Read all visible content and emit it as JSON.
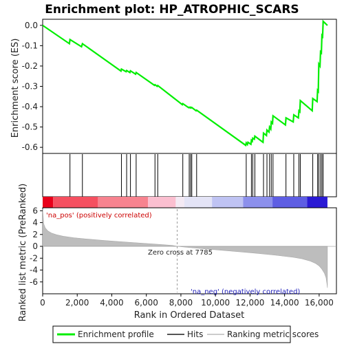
{
  "chart_data": {
    "type": "line",
    "title": "Enrichment plot: HP_ATROPHIC_SCARS",
    "xlabel": "Rank in Ordered Dataset",
    "es_ylabel": "Enrichment score (ES)",
    "metric_ylabel": "Ranked list metric (PreRanked)",
    "xlim": [
      0,
      17000
    ],
    "es_ylim": [
      -0.63,
      0.03
    ],
    "metric_ylim": [
      -8,
      6.5
    ],
    "x_ticks": [
      "0",
      "2,000",
      "4,000",
      "6,000",
      "8,000",
      "10,000",
      "12,000",
      "14,000",
      "16,000"
    ],
    "x_tick_values": [
      0,
      2000,
      4000,
      6000,
      8000,
      10000,
      12000,
      14000,
      16000
    ],
    "es_ticks": [
      "0.0",
      "-0.1",
      "-0.2",
      "-0.3",
      "-0.4",
      "-0.5",
      "-0.6"
    ],
    "es_tick_values": [
      0.0,
      -0.1,
      -0.2,
      -0.3,
      -0.4,
      -0.5,
      -0.6
    ],
    "metric_ticks": [
      "6",
      "4",
      "2",
      "0",
      "-2",
      "-4",
      "-6"
    ],
    "metric_tick_values": [
      6,
      4,
      2,
      0,
      -2,
      -4,
      -6
    ],
    "grid": false,
    "series": [
      {
        "name": "Enrichment profile",
        "color": "#00ee00",
        "x": [
          0,
          1550,
          1580,
          2250,
          2300,
          4530,
          4560,
          4830,
          4860,
          5050,
          5080,
          5380,
          5410,
          6470,
          6500,
          6630,
          6660,
          8080,
          8110,
          8450,
          8480,
          8530,
          8560,
          8600,
          8630,
          8880,
          8910,
          11750,
          11780,
          11850,
          11880,
          12050,
          12080,
          12130,
          12160,
          12250,
          12280,
          12750,
          12780,
          12950,
          12980,
          13100,
          13130,
          13200,
          13230,
          13300,
          13330,
          14050,
          14080,
          14500,
          14530,
          14800,
          14830,
          14880,
          14910,
          15600,
          15630,
          15880,
          15910,
          15950,
          15980,
          16050,
          16080,
          16130,
          16160,
          16200,
          16230,
          16480
        ],
        "y": [
          0.0,
          -0.09,
          -0.07,
          -0.105,
          -0.09,
          -0.225,
          -0.215,
          -0.228,
          -0.222,
          -0.232,
          -0.224,
          -0.24,
          -0.232,
          -0.295,
          -0.292,
          -0.3,
          -0.296,
          -0.39,
          -0.385,
          -0.405,
          -0.403,
          -0.406,
          -0.403,
          -0.406,
          -0.404,
          -0.42,
          -0.417,
          -0.59,
          -0.578,
          -0.586,
          -0.575,
          -0.585,
          -0.565,
          -0.57,
          -0.555,
          -0.56,
          -0.545,
          -0.575,
          -0.53,
          -0.542,
          -0.515,
          -0.525,
          -0.5,
          -0.51,
          -0.475,
          -0.482,
          -0.445,
          -0.49,
          -0.455,
          -0.475,
          -0.44,
          -0.455,
          -0.42,
          -0.425,
          -0.37,
          -0.42,
          -0.36,
          -0.375,
          -0.32,
          -0.325,
          -0.19,
          -0.2,
          -0.13,
          -0.135,
          -0.05,
          -0.055,
          0.02,
          0.0
        ]
      }
    ],
    "hits": [
      1580,
      2300,
      4560,
      4860,
      5080,
      5410,
      6500,
      6660,
      8110,
      8480,
      8560,
      8630,
      8910,
      11780,
      12080,
      12160,
      12280,
      12780,
      12980,
      13130,
      13230,
      13330,
      14080,
      14530,
      14830,
      14910,
      15630,
      15910,
      15980,
      16080,
      16160,
      16230
    ],
    "metric_curve": {
      "x": [
        0,
        60,
        150,
        300,
        500,
        800,
        1200,
        1800,
        2500,
        3500,
        4500,
        5500,
        6500,
        7000,
        7500,
        7785,
        8500,
        9500,
        10500,
        11500,
        12500,
        13500,
        14500,
        15000,
        15500,
        15800,
        16000,
        16150,
        16300,
        16400,
        16450,
        16480
      ],
      "y": [
        6.3,
        3.8,
        3.1,
        2.6,
        2.25,
        1.95,
        1.7,
        1.45,
        1.25,
        1.0,
        0.78,
        0.58,
        0.38,
        0.27,
        0.15,
        0.0,
        -0.2,
        -0.45,
        -0.7,
        -0.95,
        -1.2,
        -1.5,
        -1.85,
        -2.1,
        -2.5,
        -2.9,
        -3.3,
        -3.8,
        -4.5,
        -5.3,
        -6.3,
        -7.0
      ]
    },
    "annotations": {
      "zero_cross": "Zero cross at 7785",
      "zero_cross_value": 7785,
      "pos_label": "'na_pos' (positively correlated)",
      "neg_label": "'na_neg' (negatively correlated)"
    },
    "heat_bar": [
      {
        "from": 0,
        "to": 600,
        "color": "#e8001a"
      },
      {
        "from": 600,
        "to": 3200,
        "color": "#f55060"
      },
      {
        "from": 3200,
        "to": 6100,
        "color": "#f7838f"
      },
      {
        "from": 6100,
        "to": 7700,
        "color": "#fbbfd0"
      },
      {
        "from": 7700,
        "to": 8200,
        "color": "#f4eaf4"
      },
      {
        "from": 8200,
        "to": 9800,
        "color": "#e4e4f6"
      },
      {
        "from": 9800,
        "to": 11600,
        "color": "#bfc3f3"
      },
      {
        "from": 11600,
        "to": 13300,
        "color": "#8c90ec"
      },
      {
        "from": 13300,
        "to": 15300,
        "color": "#5e5ee3"
      },
      {
        "from": 15300,
        "to": 16480,
        "color": "#2a1ad4"
      }
    ],
    "legend": [
      {
        "label": "Enrichment profile",
        "color": "#00ee00"
      },
      {
        "label": "Hits",
        "color": "#555555"
      },
      {
        "label": "Ranking metric scores",
        "color": "#cccccc"
      }
    ],
    "legend_placement": "bottom",
    "colors": {
      "es_line": "#00ee00",
      "hit_line": "#000000",
      "metric_fill": "#bdbdbd",
      "pos_text": "#cc0000",
      "neg_text": "#2222bb"
    }
  }
}
